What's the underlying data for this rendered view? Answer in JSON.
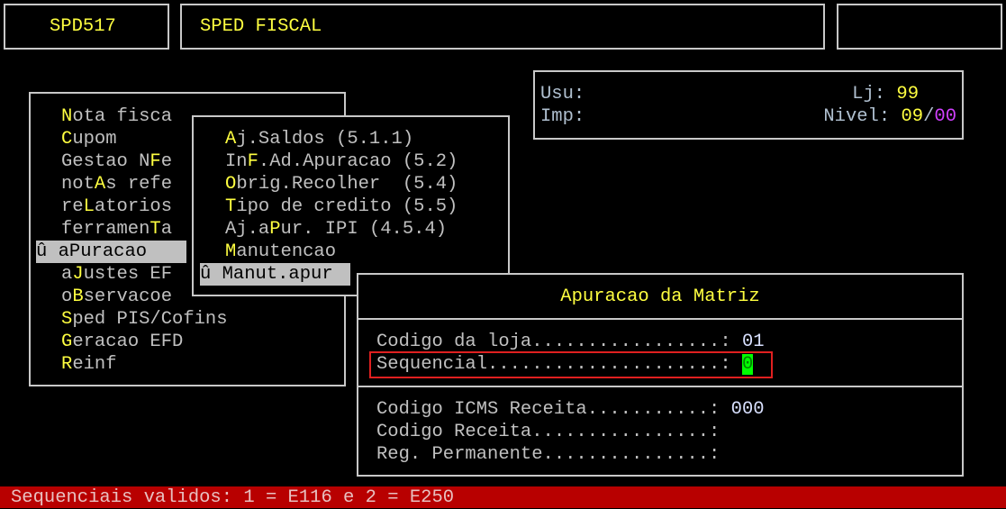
{
  "header": {
    "program_code": "SPD517",
    "title": "SPED FISCAL",
    "right_box": ""
  },
  "info": {
    "user_label": "Usu:",
    "printer_label": "Imp:",
    "store_label": "Lj:",
    "store_value": "99",
    "level_label": "Nivel:",
    "level_value_a": "09",
    "level_sep": "/",
    "level_value_b": "00"
  },
  "main_menu": {
    "selected_marker": "û",
    "items": [
      {
        "pre": "",
        "key": "N",
        "post": "ota fisca"
      },
      {
        "pre": "",
        "key": "C",
        "post": "upom"
      },
      {
        "pre": "Gestao N",
        "key": "F",
        "post": "e"
      },
      {
        "pre": "not",
        "key": "A",
        "post": "s refe"
      },
      {
        "pre": "re",
        "key": "L",
        "post": "atorios"
      },
      {
        "pre": "ferramen",
        "key": "T",
        "post": "a"
      },
      {
        "pre": "a",
        "key": "P",
        "post": "uracao",
        "selected": true
      },
      {
        "pre": "a",
        "key": "J",
        "post": "ustes EF"
      },
      {
        "pre": "o",
        "key": "B",
        "post": "servacoe"
      },
      {
        "pre": "",
        "key": "S",
        "post": "ped PIS/Cofins"
      },
      {
        "pre": "",
        "key": "G",
        "post": "eracao EFD"
      },
      {
        "pre": "",
        "key": "R",
        "post": "einf"
      }
    ]
  },
  "sub_menu": {
    "items": [
      {
        "pre": "",
        "key": "A",
        "post": "j.Saldos (5.1.1)"
      },
      {
        "pre": "In",
        "key": "F",
        "post": ".Ad.Apuracao (5.2)"
      },
      {
        "pre": "",
        "key": "O",
        "post": "brig.Recolher  (5.4)"
      },
      {
        "pre": "",
        "key": "T",
        "post": "ipo de credito (5.5)"
      },
      {
        "pre": "Aj.a",
        "key": "P",
        "post": "ur. IPI (4.5.4)"
      },
      {
        "pre": "",
        "key": "M",
        "post": "anutencao"
      },
      {
        "pre": "Manut.apur",
        "key": "",
        "post": "",
        "selected": true
      }
    ]
  },
  "dialog": {
    "title": "Apuracao da Matriz",
    "fields": [
      {
        "label": "Codigo da loja.................: ",
        "value": "01"
      },
      {
        "label": "Sequencial.....................: ",
        "value": "0",
        "active": true
      },
      {
        "label": "Codigo ICMS Receita...........: ",
        "value": "000"
      },
      {
        "label": "Codigo Receita................: ",
        "value": ""
      },
      {
        "label": "Reg. Permanente...............: ",
        "value": ""
      }
    ]
  },
  "status_bar": {
    "message": "Sequenciais validos: 1 = E116 e 2 = E250"
  },
  "colors": {
    "hotkey": "#ffff40",
    "status_bg": "#b80000",
    "active_field_bg": "#00ff00",
    "focus_outline": "#e02020"
  }
}
